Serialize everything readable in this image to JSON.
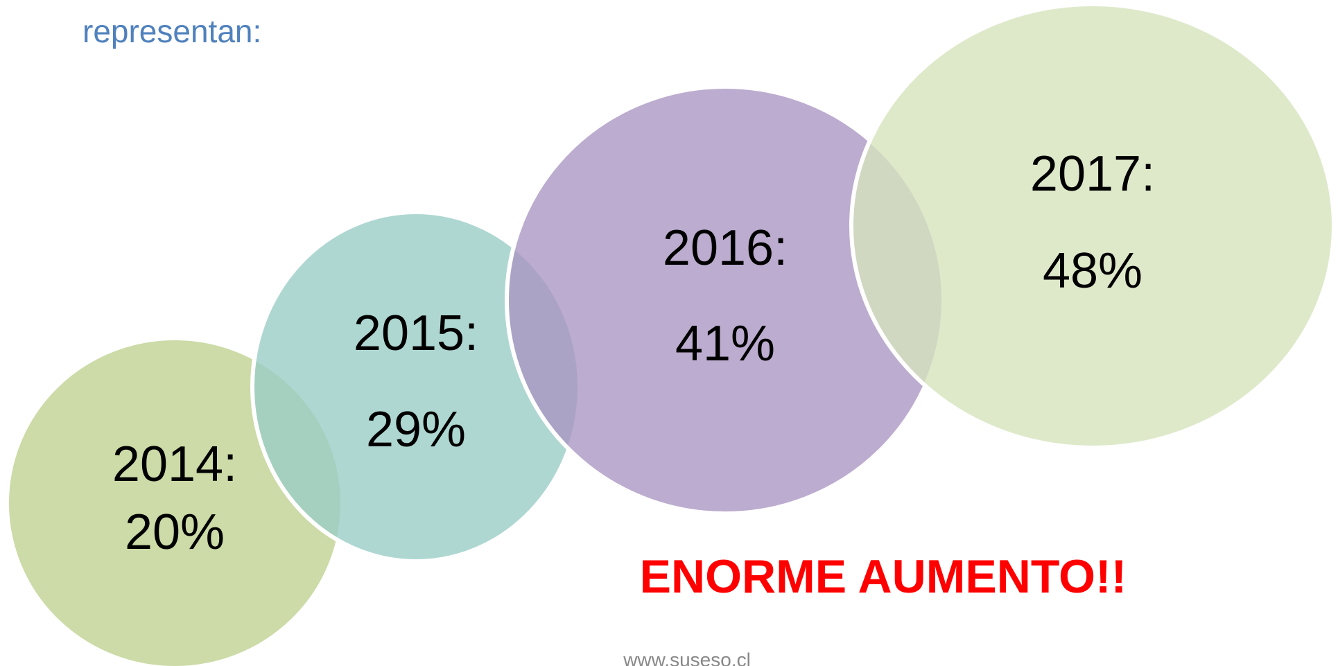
{
  "header": {
    "title": "representan:"
  },
  "nodes": [
    {
      "year": "2014:",
      "value": "20%"
    },
    {
      "year": "2015:",
      "value": "29%"
    },
    {
      "year": "2016:",
      "value": "41%"
    },
    {
      "year": "2017:",
      "value": "48%"
    }
  ],
  "callout": "ENORME AUMENTO!!",
  "footer": "www.suseso.cl"
}
